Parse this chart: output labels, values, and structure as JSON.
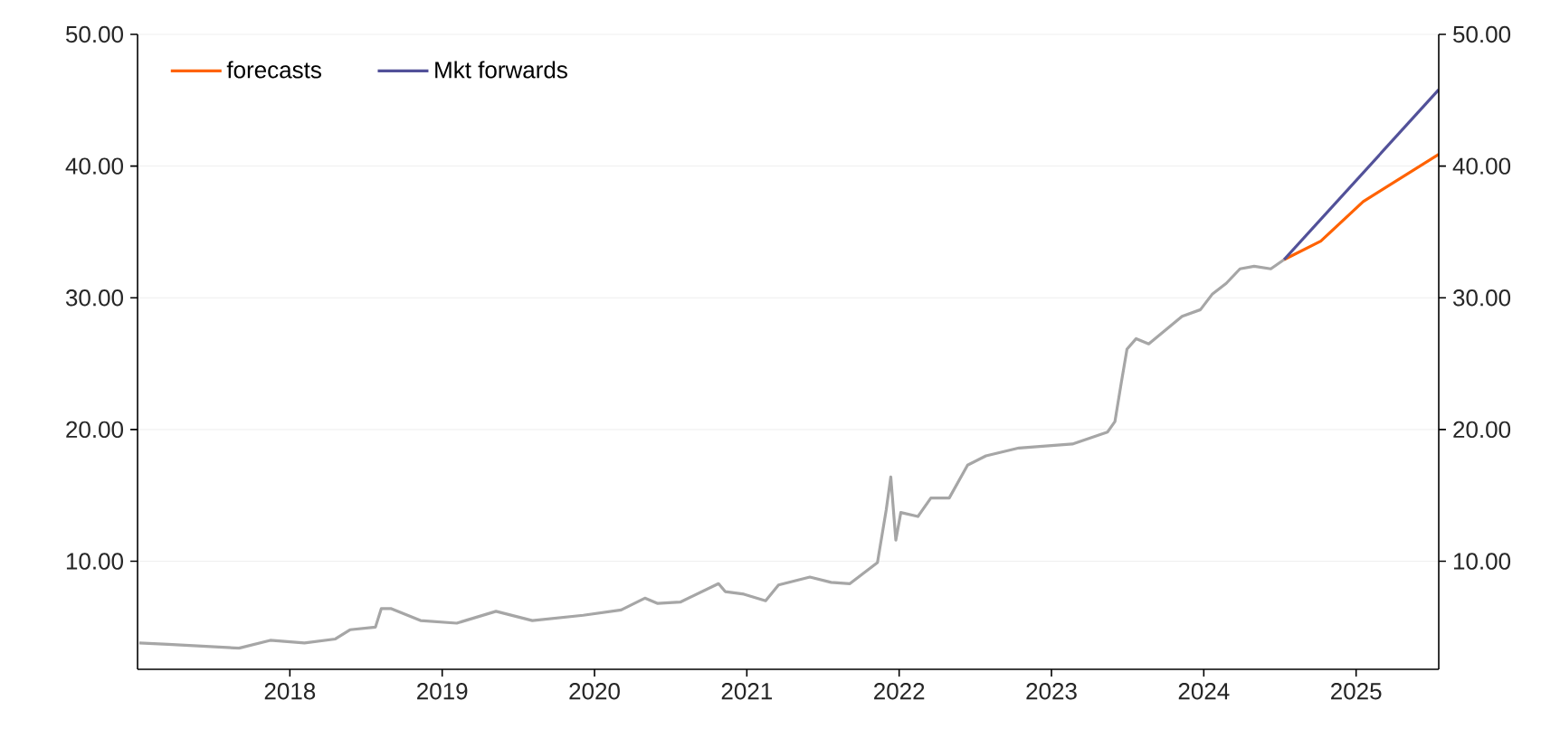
{
  "chart_data": {
    "type": "line",
    "x": [
      "2017-01-05",
      "2017-03-15",
      "2017-09-01",
      "2017-11-15",
      "2018-02-05",
      "2018-04-20",
      "2018-05-25",
      "2018-07-25",
      "2018-08-08",
      "2018-09-01",
      "2018-11-10",
      "2019-02-05",
      "2019-05-10",
      "2019-08-05",
      "2019-12-05",
      "2020-03-05",
      "2020-05-01",
      "2020-06-01",
      "2020-07-25",
      "2020-10-25",
      "2020-11-10",
      "2020-12-25",
      "2021-02-15",
      "2021-03-18",
      "2021-06-01",
      "2021-07-22",
      "2021-09-05",
      "2021-11-10",
      "2021-12-01",
      "2021-12-12",
      "2021-12-24",
      "2022-01-05",
      "2022-02-15",
      "2022-03-18",
      "2022-05-01",
      "2022-06-14",
      "2022-07-28",
      "2022-10-15",
      "2023-02-20",
      "2023-05-15",
      "2023-06-02",
      "2023-06-17",
      "2023-07-01",
      "2023-07-23",
      "2023-08-22",
      "2023-11-10",
      "2023-12-24",
      "2024-01-22",
      "2024-02-24",
      "2024-03-28",
      "2024-05-01",
      "2024-06-10",
      "2024-07-12"
    ],
    "series": [
      {
        "color": "#a6a6a6",
        "values": [
          3.8,
          3.7,
          3.4,
          4.0,
          3.8,
          4.1,
          4.8,
          5.0,
          6.4,
          6.4,
          5.5,
          5.3,
          6.2,
          5.5,
          5.9,
          6.3,
          7.2,
          6.8,
          6.9,
          8.3,
          7.7,
          7.5,
          7.0,
          8.2,
          8.8,
          8.4,
          8.3,
          9.9,
          13.9,
          16.4,
          11.6,
          13.7,
          13.4,
          14.8,
          14.8,
          17.3,
          18.0,
          18.6,
          18.9,
          19.8,
          20.6,
          23.5,
          26.1,
          26.9,
          26.5,
          28.6,
          29.1,
          30.3,
          31.1,
          32.2,
          32.4,
          32.2,
          32.9
        ]
      },
      {
        "name": "forecasts",
        "color": "#ff6200",
        "x": [
          "2024-07-12",
          "2024-10-08",
          "2025-01-18",
          "2025-07-18"
        ],
        "values": [
          32.9,
          34.3,
          37.3,
          40.9
        ]
      },
      {
        "name": "Mkt forwards",
        "color": "#525199",
        "x": [
          "2024-07-12",
          "2025-07-18"
        ],
        "values": [
          32.9,
          45.8
        ]
      }
    ],
    "xlim": [
      "2017-01-01",
      "2025-07-18"
    ],
    "xticks": [
      "2018",
      "2019",
      "2020",
      "2021",
      "2022",
      "2023",
      "2024",
      "2025"
    ],
    "ylim": [
      1.8,
      50
    ],
    "yticks": [
      {
        "value": 10,
        "label": "10.00"
      },
      {
        "value": 20,
        "label": "20.00"
      },
      {
        "value": 30,
        "label": "30.00"
      },
      {
        "value": 40,
        "label": "40.00"
      },
      {
        "value": 50,
        "label": "50.00"
      }
    ],
    "y2lim": [
      1.8,
      50
    ],
    "y2ticks": [
      {
        "value": 10,
        "label": "10.00"
      },
      {
        "value": 20,
        "label": "20.00"
      },
      {
        "value": 30,
        "label": "30.00"
      },
      {
        "value": 40,
        "label": "40.00"
      },
      {
        "value": 50,
        "label": "50.00"
      }
    ],
    "grid": "y",
    "legend": "top left"
  }
}
